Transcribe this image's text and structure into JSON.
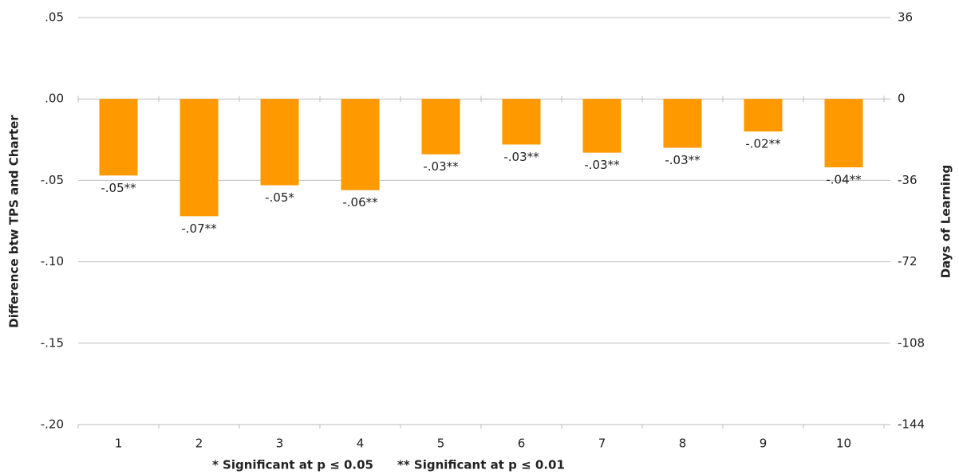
{
  "chart_data": {
    "type": "bar",
    "categories": [
      "1",
      "2",
      "3",
      "4",
      "5",
      "6",
      "7",
      "8",
      "9",
      "10"
    ],
    "values": [
      -0.047,
      -0.072,
      -0.053,
      -0.056,
      -0.034,
      -0.028,
      -0.033,
      -0.03,
      -0.02,
      -0.042
    ],
    "value_labels": [
      "-.05**",
      "-.07**",
      "-.05*",
      "-.06**",
      "-.03**",
      "-.03**",
      "-.03**",
      "-.03**",
      "-.02**",
      "-.04**"
    ],
    "color": "#ff9900",
    "ylabel": "Difference btw TPS and Charter",
    "y2label": "Days of Learning",
    "ylim": [
      -0.2,
      0.05
    ],
    "yticks": [
      {
        "value": 0.05,
        "label": ".05"
      },
      {
        "value": 0,
        "label": ".00"
      },
      {
        "value": -0.05,
        "label": "-.05"
      },
      {
        "value": -0.1,
        "label": "-.10"
      },
      {
        "value": -0.15,
        "label": "-.15"
      },
      {
        "value": -0.2,
        "label": "-.20"
      }
    ],
    "y2lim": [
      -144,
      36
    ],
    "y2ticks": [
      36,
      0,
      -36,
      -72,
      -108,
      -144
    ],
    "notes": [
      "* Significant at p ≤ 0.05",
      "** Significant at p ≤ 0.01"
    ],
    "grid": true
  }
}
